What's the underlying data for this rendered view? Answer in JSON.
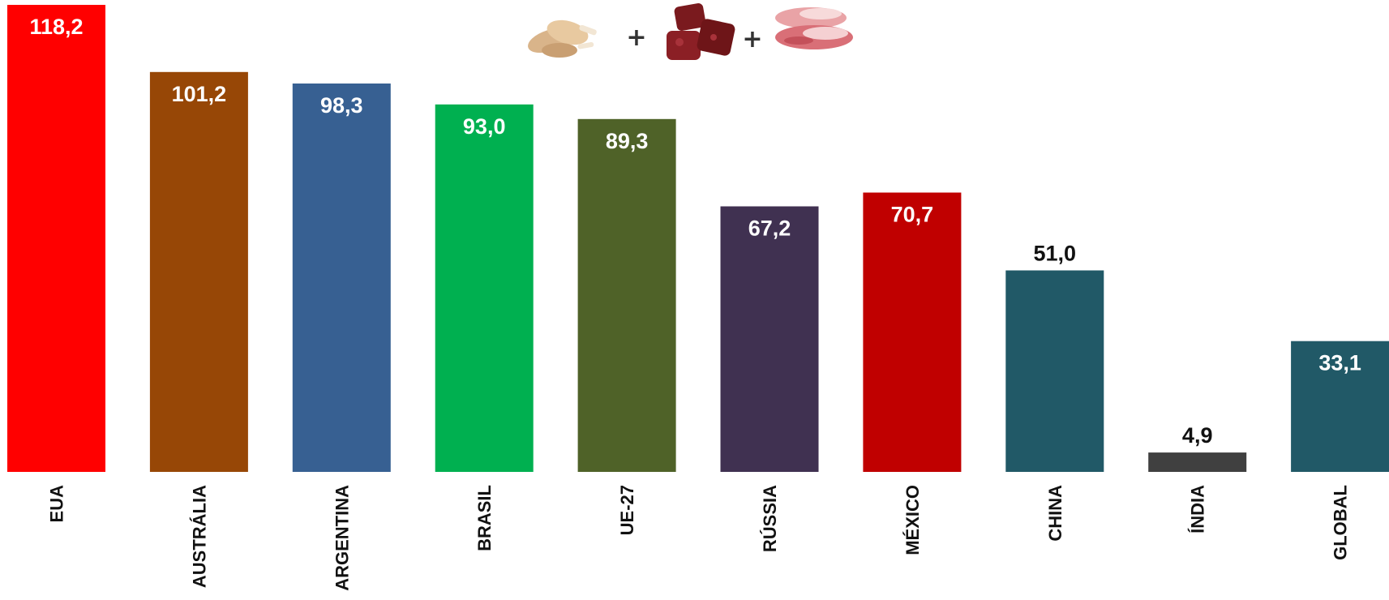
{
  "chart_data": {
    "type": "bar",
    "categories": [
      "EUA",
      "AUSTRÁLIA",
      "ARGENTINA",
      "BRASIL",
      "UE-27",
      "RÚSSIA",
      "MÉXICO",
      "CHINA",
      "ÍNDIA",
      "GLOBAL"
    ],
    "values": [
      118.2,
      101.2,
      98.3,
      93.0,
      89.3,
      67.2,
      70.7,
      51.0,
      4.9,
      33.1
    ],
    "value_labels": [
      "118,2",
      "101,2",
      "98,3",
      "93,0",
      "89,3",
      "67,2",
      "70,7",
      "51,0",
      "4,9",
      "33,1"
    ],
    "colors": [
      "#ff0000",
      "#974706",
      "#376092",
      "#00b050",
      "#4f6228",
      "#403151",
      "#c00000",
      "#215967",
      "#404040",
      "#215967"
    ],
    "label_inside": [
      true,
      true,
      true,
      true,
      true,
      true,
      true,
      false,
      false,
      true
    ],
    "ylim": [
      0,
      118.2
    ],
    "grid": false,
    "title": "",
    "xlabel": "",
    "ylabel": ""
  },
  "header_icons": {
    "items": [
      "chicken-drumstick-icon",
      "beef-cubes-icon",
      "pork-slices-icon"
    ],
    "separator": "+"
  }
}
